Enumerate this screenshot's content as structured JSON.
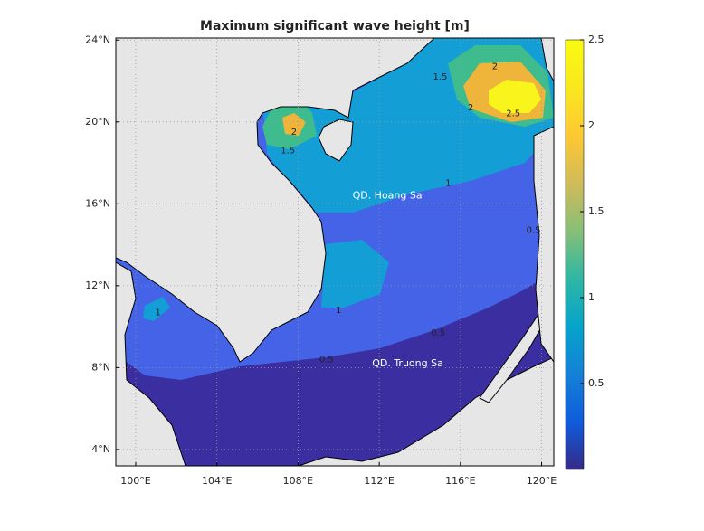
{
  "map": {
    "title": "Maximum significant wave height [m]",
    "xlim": [
      99.02,
      120.6
    ],
    "ylim": [
      3.2,
      24.1
    ],
    "xticks": [
      {
        "value": 100,
        "label": "100°E"
      },
      {
        "value": 104,
        "label": "104°E"
      },
      {
        "value": 108,
        "label": "108°E"
      },
      {
        "value": 112,
        "label": "112°E"
      },
      {
        "value": 116,
        "label": "116°E"
      },
      {
        "value": 120,
        "label": "120°E"
      }
    ],
    "yticks": [
      {
        "value": 4,
        "label": "4°N"
      },
      {
        "value": 8,
        "label": "8°N"
      },
      {
        "value": 12,
        "label": "12°N"
      },
      {
        "value": 16,
        "label": "16°N"
      },
      {
        "value": 20,
        "label": "20°N"
      },
      {
        "value": 24,
        "label": "24°N"
      }
    ],
    "grid": true,
    "contour_labels": [
      {
        "value": 2,
        "lon": 117.7,
        "lat": 22.7
      },
      {
        "value": 1.5,
        "lon": 115.0,
        "lat": 22.2
      },
      {
        "value": 2,
        "lon": 116.5,
        "lat": 20.7
      },
      {
        "value": 2.5,
        "lon": 118.6,
        "lat": 20.4
      },
      {
        "value": 2,
        "lon": 107.8,
        "lat": 19.5
      },
      {
        "value": 1.5,
        "lon": 107.5,
        "lat": 18.6
      },
      {
        "value": 1,
        "lon": 115.4,
        "lat": 17.0
      },
      {
        "value": 1,
        "lon": 110.0,
        "lat": 10.8
      },
      {
        "value": 1,
        "lon": 101.1,
        "lat": 10.7
      },
      {
        "value": 0.5,
        "lon": 109.4,
        "lat": 8.4
      },
      {
        "value": 0.5,
        "lon": 114.9,
        "lat": 9.7
      },
      {
        "value": 0.5,
        "lon": 119.6,
        "lat": 14.7
      }
    ],
    "places": [
      {
        "name": "QD. Hoang Sa",
        "lon": 112.4,
        "lat": 16.4
      },
      {
        "name": "QD. Truong Sa",
        "lon": 113.4,
        "lat": 8.2
      }
    ]
  },
  "colorbar": {
    "lim": [
      0,
      2.5
    ],
    "ticks": [
      0.5,
      1,
      1.5,
      2,
      2.5
    ],
    "colormap": [
      "#352a87",
      "#0f5cdd",
      "#1481d6",
      "#06a4ca",
      "#2eb7a4",
      "#87bf77",
      "#d1bb59",
      "#fec832",
      "#f9e81e",
      "#f9fb0e"
    ]
  }
}
